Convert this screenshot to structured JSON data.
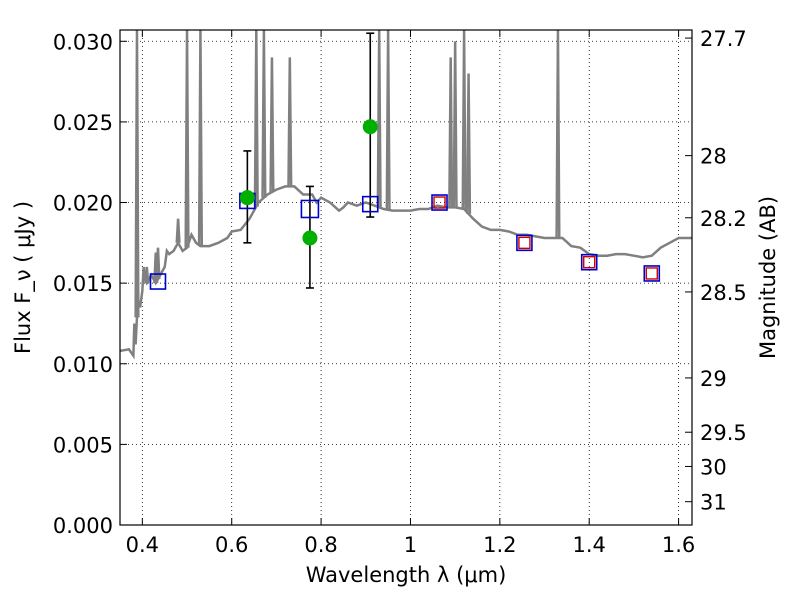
{
  "chart_data": {
    "type": "scatter",
    "xlabel": "Wavelength  λ (μm)",
    "ylabel": "Flux  F_ν  ( μJy )",
    "y2label": "Magnitude (AB)",
    "xlim": [
      0.35,
      1.63
    ],
    "ylim": [
      0.0,
      0.0307
    ],
    "grid": true,
    "x_ticks": [
      0.4,
      0.6,
      0.8,
      1.0,
      1.2,
      1.4,
      1.6
    ],
    "x_tick_labels": [
      "0.4",
      "0.6",
      "0.8",
      "1",
      "1.2",
      "1.4",
      "1.6"
    ],
    "y_ticks": [
      0.0,
      0.005,
      0.01,
      0.015,
      0.02,
      0.025,
      0.03
    ],
    "y_tick_labels": [
      "0.000",
      "0.005",
      "0.010",
      "0.015",
      "0.020",
      "0.025",
      "0.030"
    ],
    "mag_ticks": [
      27.7,
      28.0,
      28.2,
      28.5,
      29.0,
      29.5,
      30.0,
      31.0
    ],
    "mag_tick_labels": [
      "27.7",
      "28",
      "28.2",
      "28.5",
      "29",
      "29.5",
      "30",
      "31"
    ],
    "series": [
      {
        "kind": "sed_model_line",
        "color": "#808080",
        "points": [
          [
            0.35,
            0.0108
          ],
          [
            0.37,
            0.0109
          ],
          [
            0.38,
            0.0105
          ],
          [
            0.382,
            0.0125
          ],
          [
            0.385,
            0.0112
          ],
          [
            0.39,
            0.014
          ],
          [
            0.395,
            0.0135
          ],
          [
            0.4,
            0.0145
          ],
          [
            0.403,
            0.016
          ],
          [
            0.406,
            0.0152
          ],
          [
            0.41,
            0.015
          ],
          [
            0.42,
            0.0155
          ],
          [
            0.43,
            0.015
          ],
          [
            0.44,
            0.0155
          ],
          [
            0.45,
            0.016
          ],
          [
            0.455,
            0.017
          ],
          [
            0.46,
            0.0168
          ],
          [
            0.47,
            0.017
          ],
          [
            0.48,
            0.0175
          ],
          [
            0.49,
            0.017
          ],
          [
            0.5,
            0.0172
          ],
          [
            0.51,
            0.018
          ],
          [
            0.52,
            0.0175
          ],
          [
            0.53,
            0.0173
          ],
          [
            0.55,
            0.0173
          ],
          [
            0.57,
            0.0175
          ],
          [
            0.59,
            0.0178
          ],
          [
            0.6,
            0.0182
          ],
          [
            0.62,
            0.0183
          ],
          [
            0.64,
            0.019
          ],
          [
            0.66,
            0.02
          ],
          [
            0.68,
            0.0205
          ],
          [
            0.7,
            0.0208
          ],
          [
            0.72,
            0.021
          ],
          [
            0.74,
            0.021
          ],
          [
            0.76,
            0.0205
          ],
          [
            0.78,
            0.0205
          ],
          [
            0.79,
            0.02
          ],
          [
            0.8,
            0.0203
          ],
          [
            0.82,
            0.02
          ],
          [
            0.84,
            0.0195
          ],
          [
            0.85,
            0.0197
          ],
          [
            0.86,
            0.02
          ],
          [
            0.88,
            0.0198
          ],
          [
            0.9,
            0.02
          ],
          [
            0.92,
            0.0198
          ],
          [
            0.94,
            0.0196
          ],
          [
            0.96,
            0.0195
          ],
          [
            0.98,
            0.0195
          ],
          [
            1.0,
            0.0195
          ],
          [
            1.02,
            0.0196
          ],
          [
            1.04,
            0.0196
          ],
          [
            1.06,
            0.0198
          ],
          [
            1.08,
            0.0197
          ],
          [
            1.1,
            0.0197
          ],
          [
            1.12,
            0.0196
          ],
          [
            1.14,
            0.019
          ],
          [
            1.16,
            0.0185
          ],
          [
            1.18,
            0.0183
          ],
          [
            1.2,
            0.0183
          ],
          [
            1.22,
            0.0182
          ],
          [
            1.24,
            0.018
          ],
          [
            1.26,
            0.018
          ],
          [
            1.28,
            0.0179
          ],
          [
            1.3,
            0.0178
          ],
          [
            1.32,
            0.0178
          ],
          [
            1.34,
            0.0178
          ],
          [
            1.36,
            0.0173
          ],
          [
            1.38,
            0.0172
          ],
          [
            1.4,
            0.0168
          ],
          [
            1.42,
            0.0167
          ],
          [
            1.44,
            0.0167
          ],
          [
            1.46,
            0.0168
          ],
          [
            1.48,
            0.0168
          ],
          [
            1.5,
            0.0167
          ],
          [
            1.52,
            0.0166
          ],
          [
            1.54,
            0.0167
          ],
          [
            1.56,
            0.0172
          ],
          [
            1.58,
            0.0175
          ],
          [
            1.6,
            0.0178
          ],
          [
            1.63,
            0.0178
          ]
        ],
        "emission_spikes": [
          {
            "x": 0.388,
            "peak": 0.032
          },
          {
            "x": 0.41,
            "peak": 0.016
          },
          {
            "x": 0.43,
            "peak": 0.0169
          },
          {
            "x": 0.435,
            "peak": 0.0172
          },
          {
            "x": 0.48,
            "peak": 0.019
          },
          {
            "x": 0.5,
            "peak": 0.032
          },
          {
            "x": 0.53,
            "peak": 0.032
          },
          {
            "x": 0.655,
            "peak": 0.032
          },
          {
            "x": 0.672,
            "peak": 0.032
          },
          {
            "x": 0.69,
            "peak": 0.029
          },
          {
            "x": 0.73,
            "peak": 0.029
          },
          {
            "x": 0.93,
            "peak": 0.032
          },
          {
            "x": 0.95,
            "peak": 0.032
          },
          {
            "x": 1.09,
            "peak": 0.029
          },
          {
            "x": 1.1,
            "peak": 0.03
          },
          {
            "x": 1.12,
            "peak": 0.032
          },
          {
            "x": 1.13,
            "peak": 0.028
          },
          {
            "x": 1.33,
            "peak": 0.032
          }
        ]
      },
      {
        "kind": "observed_points",
        "marker": "circle",
        "color": "#00b000",
        "points": [
          {
            "x": 0.635,
            "y": 0.0203,
            "yerr_low": 0.0175,
            "yerr_high": 0.0232
          },
          {
            "x": 0.775,
            "y": 0.0178,
            "yerr_low": 0.0147,
            "yerr_high": 0.021
          },
          {
            "x": 0.91,
            "y": 0.0247,
            "yerr_low": 0.0191,
            "yerr_high": 0.0305
          }
        ]
      },
      {
        "kind": "model_photometry",
        "marker": "open-square",
        "color": "#0000cc",
        "points": [
          {
            "x": 0.435,
            "y": 0.0151,
            "size": "medium"
          },
          {
            "x": 0.635,
            "y": 0.0201,
            "size": "medium"
          },
          {
            "x": 0.775,
            "y": 0.0196,
            "size": "large"
          },
          {
            "x": 0.91,
            "y": 0.0199,
            "size": "medium"
          },
          {
            "x": 1.065,
            "y": 0.02,
            "size": "medium"
          },
          {
            "x": 1.255,
            "y": 0.0175,
            "size": "medium"
          },
          {
            "x": 1.4,
            "y": 0.0163,
            "size": "medium"
          },
          {
            "x": 1.54,
            "y": 0.0156,
            "size": "medium"
          }
        ]
      },
      {
        "kind": "model_photometry_inner",
        "marker": "open-square",
        "color": "#cc0000",
        "points": [
          {
            "x": 1.065,
            "y": 0.02
          },
          {
            "x": 1.255,
            "y": 0.0175
          },
          {
            "x": 1.4,
            "y": 0.0163
          },
          {
            "x": 1.54,
            "y": 0.0156
          }
        ]
      }
    ]
  },
  "colors": {
    "sed_line": "#808080",
    "observed": "#00b000",
    "model_blue": "#0000cc",
    "model_red": "#cc0000",
    "grid": "#000000"
  }
}
